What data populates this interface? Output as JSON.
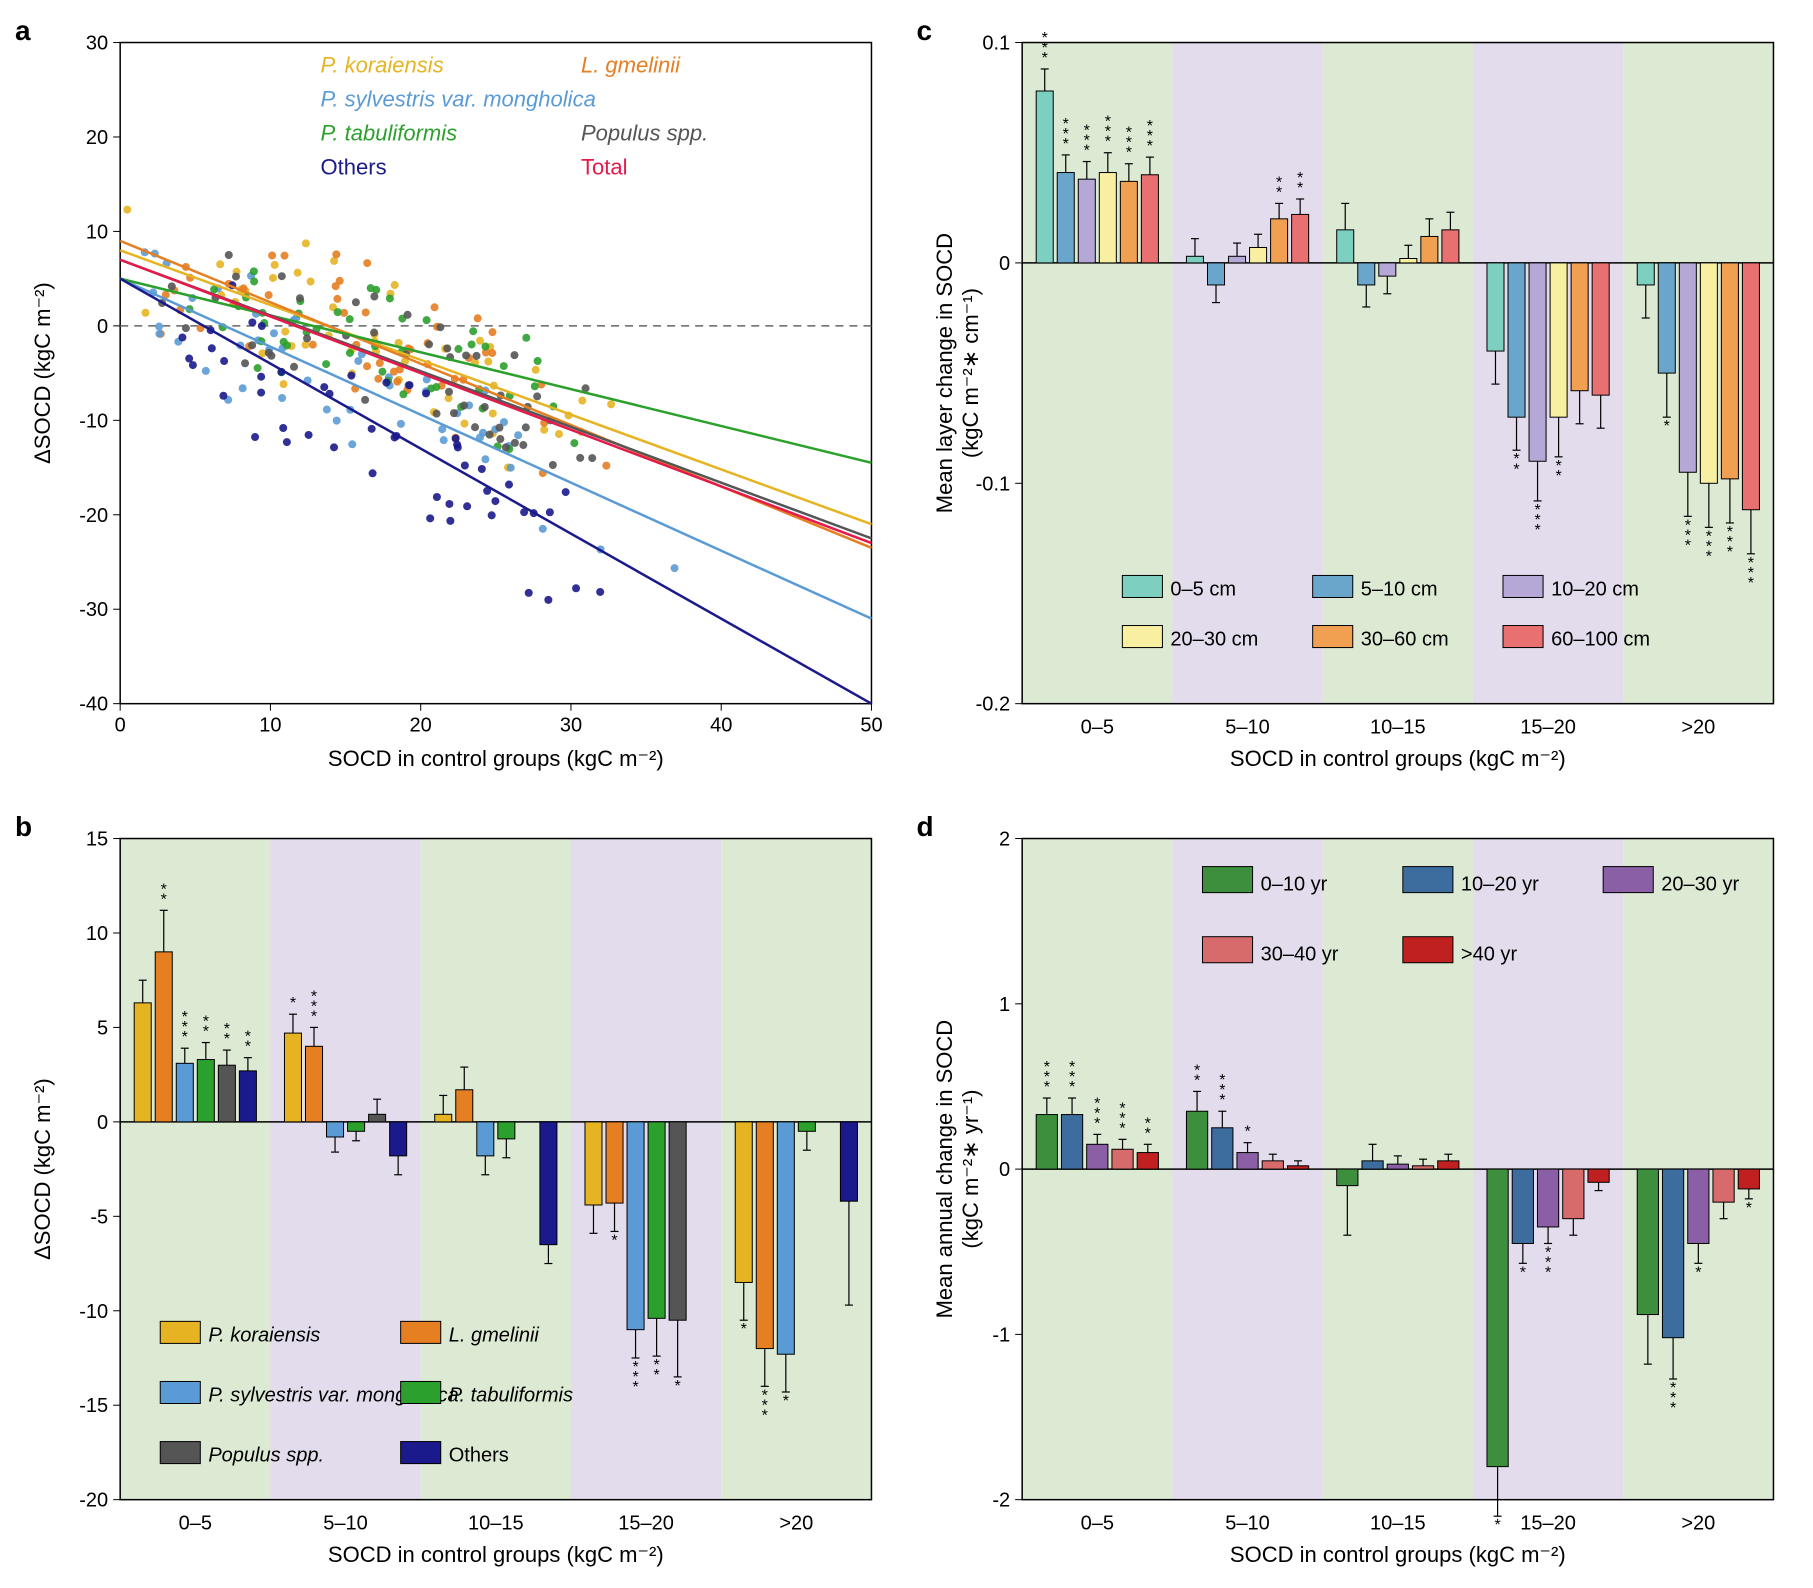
{
  "panel_labels": {
    "a": "a",
    "b": "b",
    "c": "c",
    "d": "d"
  },
  "x_categories": [
    "0–5",
    "5–10",
    "10–15",
    "15–20",
    ">20"
  ],
  "xaxis_label_socd": "SOCD in control groups (kgC m⁻²)",
  "panelA": {
    "type": "scatter-with-lines",
    "background_color": "#ffffff",
    "xlim": [
      0,
      50
    ],
    "ylim": [
      -40,
      30
    ],
    "xtick_step": 10,
    "ytick_step": 10,
    "xlabel": "SOCD in control groups (kgC m⁻²)",
    "ylabel": "ΔSOCD (kgC m⁻²)",
    "series": [
      {
        "name": "P. koraiensis",
        "italic": true,
        "color": "#e6b422",
        "slope": -0.58,
        "intercept": 8
      },
      {
        "name": "L. gmelinii",
        "italic": true,
        "color": "#e67e22",
        "slope": -0.65,
        "intercept": 9
      },
      {
        "name": "P. sylvestris var. mongholica",
        "italic": true,
        "color": "#5b9bd5",
        "slope": -0.72,
        "intercept": 5
      },
      {
        "name": "P. tabuliformis",
        "italic": true,
        "color": "#2ca02c",
        "slope": -0.39,
        "intercept": 5
      },
      {
        "name": "Populus spp.",
        "italic": true,
        "color": "#555555",
        "slope": -0.59,
        "intercept": 7
      },
      {
        "name": "Others",
        "italic": false,
        "color": "#1a1a8c",
        "slope": -0.9,
        "intercept": 5
      },
      {
        "name": "Total",
        "italic": false,
        "color": "#e6194b",
        "slope": -0.6,
        "intercept": 7
      }
    ],
    "point_radius": 4
  },
  "panelB": {
    "type": "grouped-bar",
    "ylim": [
      -20,
      15
    ],
    "ytick_step": 5,
    "ylabel": "ΔSOCD (kgC m⁻²)",
    "band_colors": [
      "#dcead3",
      "#e3dced",
      "#dcead3",
      "#e3dced",
      "#dcead3"
    ],
    "series": [
      {
        "name": "P. koraiensis",
        "italic": true,
        "color": "#e6b422"
      },
      {
        "name": "L. gmelinii",
        "italic": true,
        "color": "#e67e22"
      },
      {
        "name": "P. sylvestris var. mongholica",
        "italic": true,
        "color": "#5b9bd5"
      },
      {
        "name": "P. tabuliformis",
        "italic": true,
        "color": "#2ca02c"
      },
      {
        "name": "Populus spp.",
        "italic": true,
        "color": "#555555"
      },
      {
        "name": "Others",
        "italic": false,
        "color": "#1a1a8c"
      }
    ],
    "data": [
      [
        {
          "v": 6.3,
          "e": 1.2,
          "s": ""
        },
        {
          "v": 9.0,
          "e": 2.2,
          "s": "**"
        },
        {
          "v": 3.1,
          "e": 0.8,
          "s": "***"
        },
        {
          "v": 3.3,
          "e": 0.9,
          "s": "**"
        },
        {
          "v": 3.0,
          "e": 0.8,
          "s": "**"
        },
        {
          "v": 2.7,
          "e": 0.7,
          "s": "**"
        }
      ],
      [
        {
          "v": 4.7,
          "e": 1.0,
          "s": "*"
        },
        {
          "v": 4.0,
          "e": 1.0,
          "s": "***"
        },
        {
          "v": -0.8,
          "e": 0.8,
          "s": ""
        },
        {
          "v": -0.5,
          "e": 0.5,
          "s": ""
        },
        {
          "v": 0.4,
          "e": 0.8,
          "s": ""
        },
        {
          "v": -1.8,
          "e": 1.0,
          "s": ""
        }
      ],
      [
        {
          "v": 0.4,
          "e": 1.0,
          "s": ""
        },
        {
          "v": 1.7,
          "e": 1.2,
          "s": ""
        },
        {
          "v": -1.8,
          "e": 1.0,
          "s": ""
        },
        {
          "v": -0.9,
          "e": 1.0,
          "s": ""
        },
        {
          "v": null
        },
        {
          "v": -6.5,
          "e": 1.0,
          "s": ""
        }
      ],
      [
        {
          "v": -4.4,
          "e": 1.5,
          "s": ""
        },
        {
          "v": -4.3,
          "e": 1.5,
          "s": "*"
        },
        {
          "v": -11.0,
          "e": 1.5,
          "s": "***"
        },
        {
          "v": -10.4,
          "e": 2.0,
          "s": "**"
        },
        {
          "v": -10.5,
          "e": 3.0,
          "s": "*"
        },
        {
          "v": null
        }
      ],
      [
        {
          "v": -8.5,
          "e": 2.0,
          "s": "*"
        },
        {
          "v": -12.0,
          "e": 2.0,
          "s": "***"
        },
        {
          "v": -12.3,
          "e": 2.0,
          "s": "*"
        },
        {
          "v": -0.5,
          "e": 1.0,
          "s": ""
        },
        {
          "v": null
        },
        {
          "v": -4.2,
          "e": 5.5,
          "s": ""
        }
      ]
    ]
  },
  "panelC": {
    "type": "grouped-bar",
    "ylim": [
      -0.2,
      0.1
    ],
    "yticks": [
      -0.2,
      -0.1,
      0,
      0.1
    ],
    "ylabel": "Mean layer change in SOCD\n(kgC m⁻²∗ cm⁻¹)",
    "band_colors": [
      "#dcead3",
      "#e3dced",
      "#dcead3",
      "#e3dced",
      "#dcead3"
    ],
    "series": [
      {
        "name": "0–5 cm",
        "color": "#7dd0c0"
      },
      {
        "name": "5–10 cm",
        "color": "#6aa6cc"
      },
      {
        "name": "10–20 cm",
        "color": "#b5a8d6"
      },
      {
        "name": "20–30 cm",
        "color": "#f8f0a0"
      },
      {
        "name": "30–60 cm",
        "color": "#f0a050"
      },
      {
        "name": "60–100 cm",
        "color": "#e87070"
      }
    ],
    "data": [
      [
        {
          "v": 0.078,
          "e": 0.01,
          "s": "***"
        },
        {
          "v": 0.041,
          "e": 0.008,
          "s": "***"
        },
        {
          "v": 0.038,
          "e": 0.008,
          "s": "***"
        },
        {
          "v": 0.041,
          "e": 0.009,
          "s": "***"
        },
        {
          "v": 0.037,
          "e": 0.008,
          "s": "***"
        },
        {
          "v": 0.04,
          "e": 0.008,
          "s": "***"
        }
      ],
      [
        {
          "v": 0.003,
          "e": 0.008,
          "s": ""
        },
        {
          "v": -0.01,
          "e": 0.008,
          "s": ""
        },
        {
          "v": 0.003,
          "e": 0.006,
          "s": ""
        },
        {
          "v": 0.007,
          "e": 0.006,
          "s": ""
        },
        {
          "v": 0.02,
          "e": 0.007,
          "s": "**"
        },
        {
          "v": 0.022,
          "e": 0.007,
          "s": "**"
        }
      ],
      [
        {
          "v": 0.015,
          "e": 0.012,
          "s": ""
        },
        {
          "v": -0.01,
          "e": 0.01,
          "s": ""
        },
        {
          "v": -0.006,
          "e": 0.008,
          "s": ""
        },
        {
          "v": 0.002,
          "e": 0.006,
          "s": ""
        },
        {
          "v": 0.012,
          "e": 0.008,
          "s": ""
        },
        {
          "v": 0.015,
          "e": 0.008,
          "s": ""
        }
      ],
      [
        {
          "v": -0.04,
          "e": 0.015,
          "s": ""
        },
        {
          "v": -0.07,
          "e": 0.015,
          "s": "**"
        },
        {
          "v": -0.09,
          "e": 0.018,
          "s": "***"
        },
        {
          "v": -0.07,
          "e": 0.018,
          "s": "**"
        },
        {
          "v": -0.058,
          "e": 0.015,
          "s": ""
        },
        {
          "v": -0.06,
          "e": 0.015,
          "s": ""
        }
      ],
      [
        {
          "v": -0.01,
          "e": 0.015,
          "s": ""
        },
        {
          "v": -0.05,
          "e": 0.02,
          "s": "*"
        },
        {
          "v": -0.095,
          "e": 0.02,
          "s": "***"
        },
        {
          "v": -0.1,
          "e": 0.02,
          "s": "***"
        },
        {
          "v": -0.098,
          "e": 0.02,
          "s": "***"
        },
        {
          "v": -0.112,
          "e": 0.02,
          "s": "***"
        }
      ]
    ]
  },
  "panelD": {
    "type": "grouped-bar",
    "ylim": [
      -2,
      2
    ],
    "ytick_step": 1,
    "ylabel": "Mean annual change in SOCD\n(kgC m⁻²∗ yr⁻¹)",
    "band_colors": [
      "#dcead3",
      "#e3dced",
      "#dcead3",
      "#e3dced",
      "#dcead3"
    ],
    "series": [
      {
        "name": "0–10 yr",
        "color": "#3d8f3d"
      },
      {
        "name": "10–20 yr",
        "color": "#3d6d9f"
      },
      {
        "name": "20–30 yr",
        "color": "#8a5fa6"
      },
      {
        "name": "30–40 yr",
        "color": "#d76a6a"
      },
      {
        "name": ">40 yr",
        "color": "#c02020"
      }
    ],
    "data": [
      [
        {
          "v": 0.33,
          "e": 0.1,
          "s": "***"
        },
        {
          "v": 0.33,
          "e": 0.1,
          "s": "***"
        },
        {
          "v": 0.15,
          "e": 0.06,
          "s": "***"
        },
        {
          "v": 0.12,
          "e": 0.06,
          "s": "***"
        },
        {
          "v": 0.1,
          "e": 0.05,
          "s": "**"
        }
      ],
      [
        {
          "v": 0.35,
          "e": 0.12,
          "s": "**"
        },
        {
          "v": 0.25,
          "e": 0.1,
          "s": "***"
        },
        {
          "v": 0.1,
          "e": 0.06,
          "s": "*"
        },
        {
          "v": 0.05,
          "e": 0.04,
          "s": ""
        },
        {
          "v": 0.02,
          "e": 0.03,
          "s": ""
        }
      ],
      [
        {
          "v": -0.1,
          "e": 0.3,
          "s": ""
        },
        {
          "v": 0.05,
          "e": 0.1,
          "s": ""
        },
        {
          "v": 0.03,
          "e": 0.05,
          "s": ""
        },
        {
          "v": 0.02,
          "e": 0.04,
          "s": ""
        },
        {
          "v": 0.05,
          "e": 0.04,
          "s": ""
        }
      ],
      [
        {
          "v": -1.8,
          "e": 0.3,
          "s": "*"
        },
        {
          "v": -0.45,
          "e": 0.12,
          "s": "*"
        },
        {
          "v": -0.35,
          "e": 0.1,
          "s": "***"
        },
        {
          "v": -0.3,
          "e": 0.1,
          "s": ""
        },
        {
          "v": -0.08,
          "e": 0.05,
          "s": ""
        }
      ],
      [
        {
          "v": -0.88,
          "e": 0.3,
          "s": ""
        },
        {
          "v": -1.02,
          "e": 0.25,
          "s": "***"
        },
        {
          "v": -0.45,
          "e": 0.12,
          "s": "*"
        },
        {
          "v": -0.2,
          "e": 0.1,
          "s": ""
        },
        {
          "v": -0.12,
          "e": 0.06,
          "s": "*"
        }
      ]
    ]
  }
}
